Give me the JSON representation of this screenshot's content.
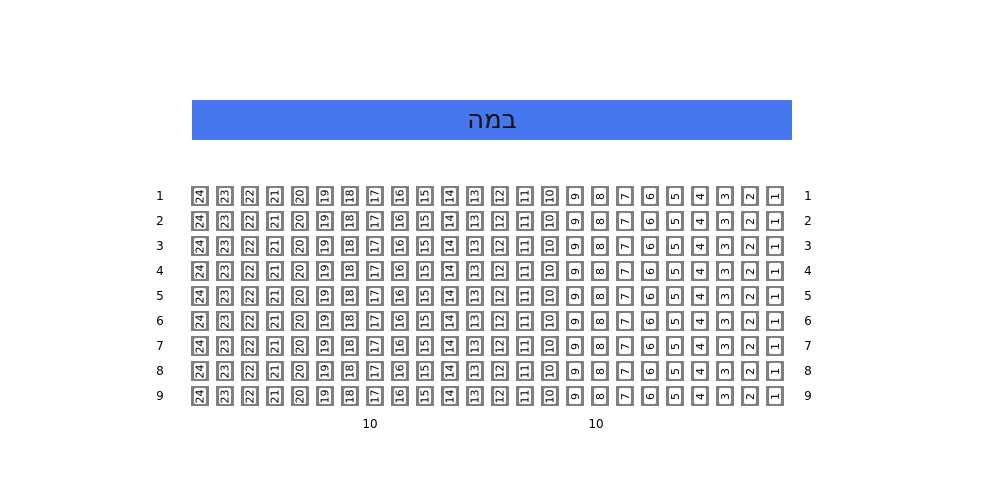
{
  "stage": {
    "label": "במה",
    "color": "#4677ee"
  },
  "seat_numbers": [
    "24",
    "23",
    "22",
    "21",
    "20",
    "19",
    "18",
    "17",
    "16",
    "15",
    "14",
    "13",
    "12",
    "11",
    "10",
    "9",
    "8",
    "7",
    "6",
    "5",
    "4",
    "3",
    "2",
    "1"
  ],
  "rows": [
    "1",
    "2",
    "3",
    "4",
    "5",
    "6",
    "7",
    "8",
    "9"
  ],
  "section_labels": [
    "10",
    "10"
  ],
  "colors": {
    "seat_frame": "#808080",
    "seat_fill": "#ffffff"
  }
}
